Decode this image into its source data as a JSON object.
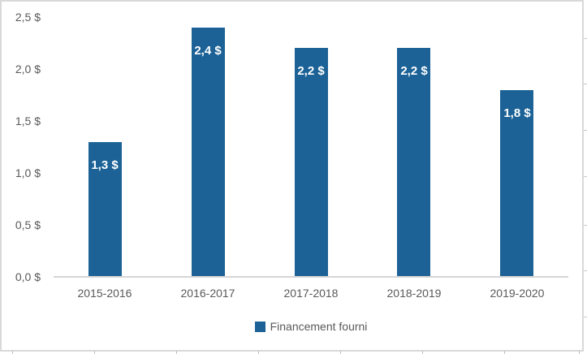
{
  "chart_data": {
    "type": "bar",
    "categories": [
      "2015-2016",
      "2016-2017",
      "2017-2018",
      "2018-2019",
      "2019-2020"
    ],
    "values": [
      1.3,
      2.4,
      2.2,
      2.2,
      1.8
    ],
    "bar_labels": [
      "1,3 $",
      "2,4 $",
      "2,2 $",
      "2,2 $",
      "1,8 $"
    ],
    "y_ticks": [
      {
        "value": 0.0,
        "label": "0,0 $"
      },
      {
        "value": 0.5,
        "label": "0,5 $"
      },
      {
        "value": 1.0,
        "label": "1,0 $"
      },
      {
        "value": 1.5,
        "label": "1,5 $"
      },
      {
        "value": 2.0,
        "label": "2,0 $"
      },
      {
        "value": 2.5,
        "label": "2,5 $"
      }
    ],
    "ylim": [
      0,
      2.5
    ],
    "title": "",
    "xlabel": "",
    "ylabel": "",
    "grid": false,
    "legend_position": "bottom",
    "legend": "Financement fourni"
  },
  "colors": {
    "bar": "#1C6296",
    "axis_text": "#595959",
    "axis_line": "#D6D6D6",
    "frame_border": "#D9D9D9",
    "data_label": "#FFFFFF"
  }
}
